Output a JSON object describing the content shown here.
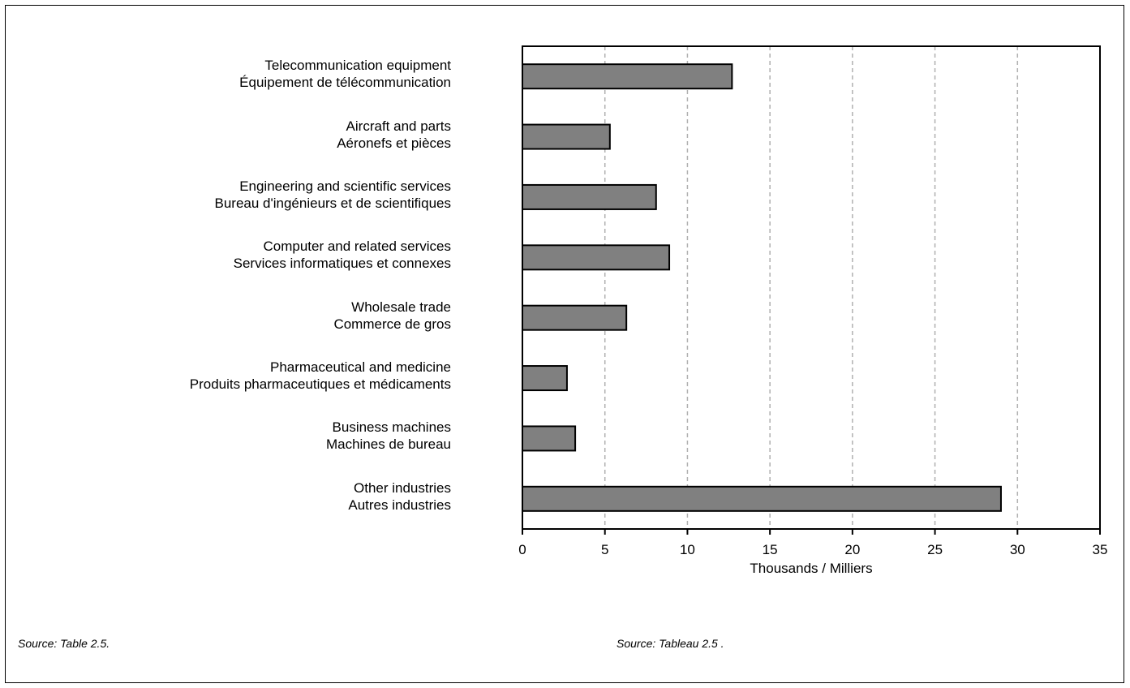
{
  "chart_data": {
    "type": "bar",
    "orientation": "horizontal",
    "categories": [
      {
        "en": "Telecommunication equipment",
        "fr": "Équipement de télécommunication"
      },
      {
        "en": "Aircraft and parts",
        "fr": "Aéronefs et pièces"
      },
      {
        "en": "Engineering and scientific services",
        "fr": "Bureau d'ingénieurs et de scientifiques"
      },
      {
        "en": "Computer and related services",
        "fr": "Services informatiques et connexes"
      },
      {
        "en": "Wholesale trade",
        "fr": "Commerce de gros"
      },
      {
        "en": "Pharmaceutical and medicine",
        "fr": "Produits pharmaceutiques et médicaments"
      },
      {
        "en": "Business machines",
        "fr": "Machines de bureau"
      },
      {
        "en": "Other industries",
        "fr": "Autres industries"
      }
    ],
    "values": [
      12.7,
      5.3,
      8.1,
      8.9,
      6.3,
      2.7,
      3.2,
      29.0
    ],
    "xlabel": "Thousands / Milliers",
    "xlim": [
      0,
      35
    ],
    "xticks": [
      0,
      5,
      10,
      15,
      20,
      25,
      30,
      35
    ],
    "grid": "vertical dashed",
    "bar_color": "#808080"
  },
  "source": {
    "en": "Source:  Table 2.5.",
    "fr": "Source:  Tableau 2.5 ."
  }
}
